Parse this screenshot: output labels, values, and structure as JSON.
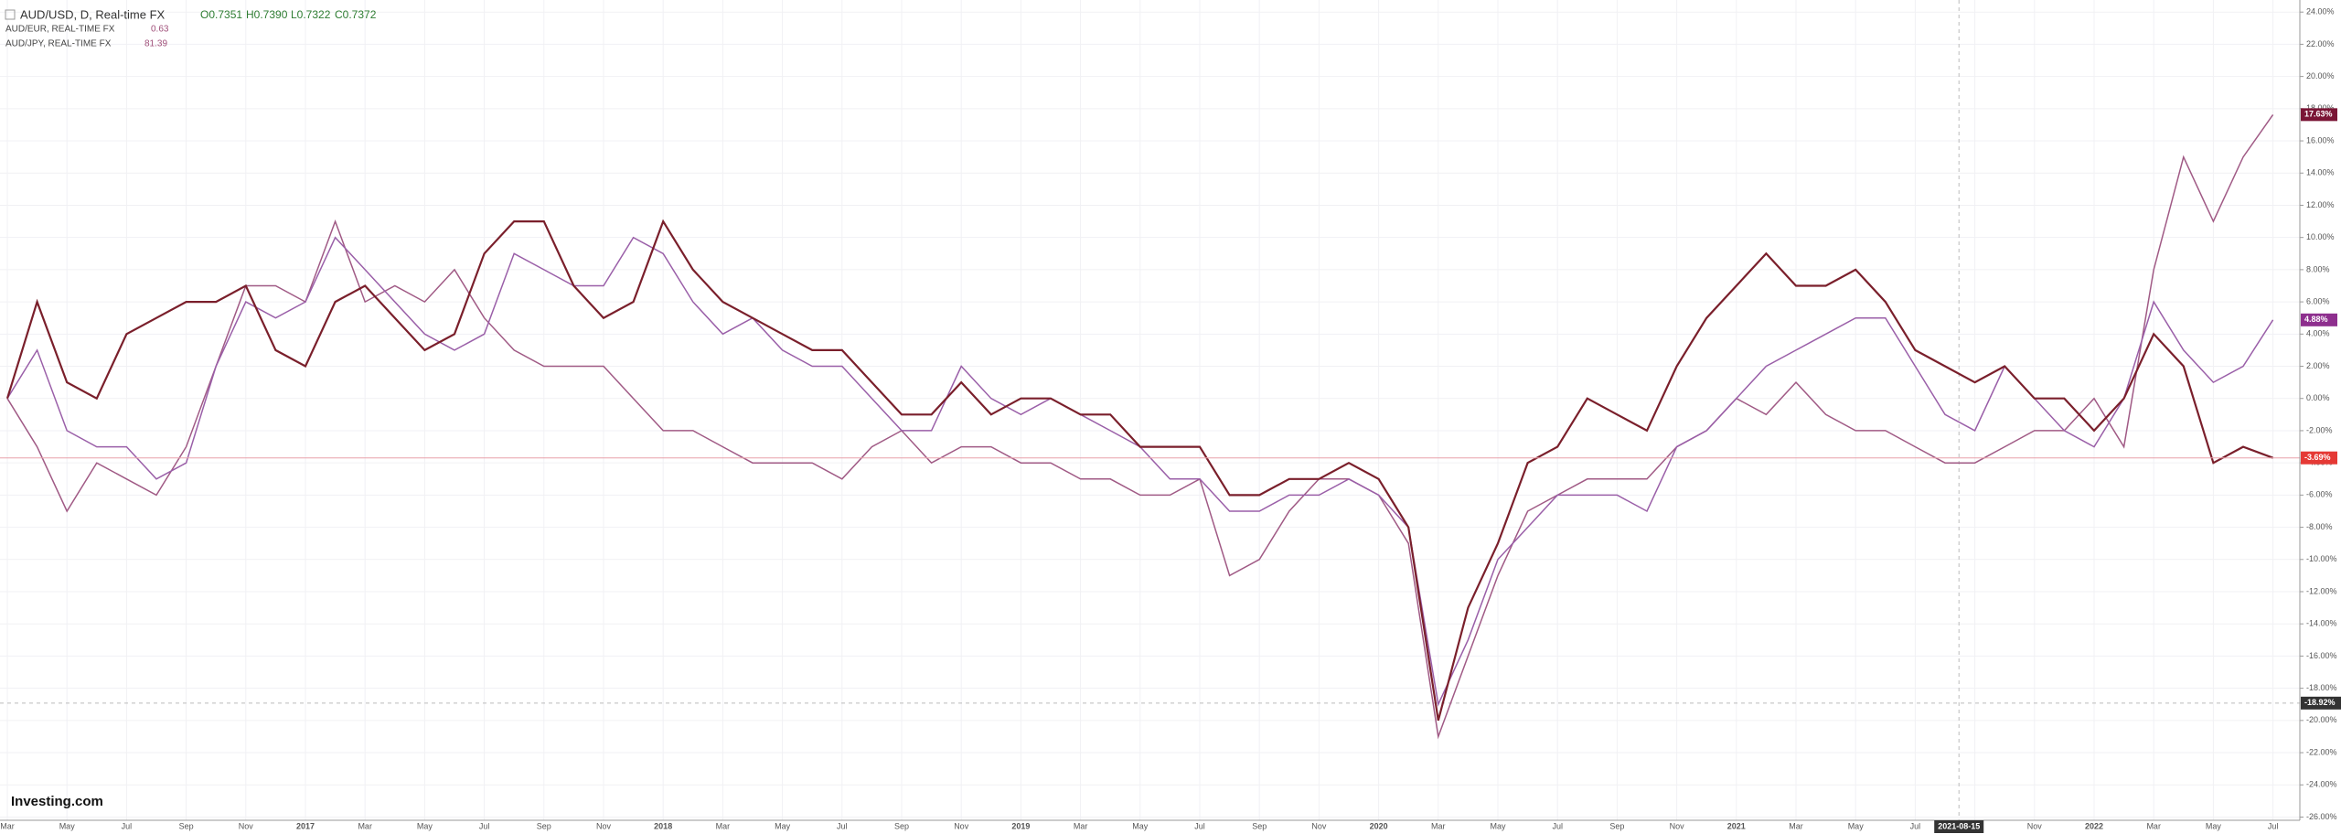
{
  "chart_data": {
    "type": "line",
    "categories": [
      "Mar",
      null,
      "May",
      null,
      "Jul",
      null,
      "Sep",
      null,
      "Nov",
      null,
      "2017",
      null,
      "Mar",
      null,
      "May",
      null,
      "Jul",
      null,
      "Sep",
      null,
      "Nov",
      null,
      "2018",
      null,
      "Mar",
      null,
      "May",
      null,
      "Jul",
      null,
      "Sep",
      null,
      "Nov",
      null,
      "2019",
      null,
      "Mar",
      null,
      "May",
      null,
      "Jul",
      null,
      "Sep",
      null,
      "Nov",
      null,
      "2020",
      null,
      "Mar",
      null,
      "May",
      null,
      "Jul",
      null,
      "Sep",
      null,
      "Nov",
      null,
      "2021",
      null,
      "Mar",
      null,
      "May",
      null,
      "Jul",
      null,
      "Sep",
      null,
      "Nov",
      null,
      "2022",
      null,
      "Mar",
      null,
      "May",
      null,
      "Jul"
    ],
    "series": [
      {
        "name": "AUD/USD, D, Real-time FX",
        "color": "#7a1f2b",
        "ohlc": [
          "O0.7351",
          "H0.7390",
          "L0.7322",
          "C0.7372"
        ],
        "last_label": "-3.69%",
        "label_color": "#e53935",
        "values": [
          0,
          6,
          1,
          0,
          4,
          5,
          6,
          6,
          7,
          3,
          2,
          6,
          7,
          5,
          3,
          4,
          9,
          11,
          11,
          7,
          5,
          6,
          11,
          8,
          6,
          5,
          4,
          3,
          3,
          1,
          -1,
          -1,
          1,
          -1,
          0,
          0,
          -1,
          -1,
          -3,
          -3,
          -3,
          -6,
          -6,
          -5,
          -5,
          -4,
          -5,
          -8,
          -20,
          -13,
          -9,
          -4,
          -3,
          0,
          -1,
          -2,
          2,
          5,
          7,
          9,
          7,
          7,
          8,
          6,
          3,
          2,
          1,
          2,
          0,
          0,
          -2,
          0,
          4,
          2,
          -4,
          -3,
          -3.69
        ]
      },
      {
        "name": "AUD/EUR, REAL-TIME FX",
        "color": "#9a5fa8",
        "price": 0.63,
        "last_label": "4.88%",
        "label_color": "#8e2f8e",
        "values": [
          0,
          3,
          -2,
          -3,
          -3,
          -5,
          -4,
          2,
          6,
          5,
          6,
          10,
          8,
          6,
          4,
          3,
          4,
          9,
          8,
          7,
          7,
          10,
          9,
          6,
          4,
          5,
          3,
          2,
          2,
          0,
          -2,
          -2,
          2,
          0,
          -1,
          0,
          -1,
          -2,
          -3,
          -5,
          -5,
          -7,
          -7,
          -6,
          -6,
          -5,
          -6,
          -8,
          -19,
          -15,
          -10,
          -8,
          -6,
          -6,
          -6,
          -7,
          -3,
          -2,
          0,
          2,
          3,
          4,
          5,
          5,
          2,
          -1,
          -2,
          2,
          0,
          -2,
          -3,
          0,
          6,
          3,
          1,
          2,
          4.88
        ]
      },
      {
        "name": "AUD/JPY, REAL-TIME FX",
        "color": "#a05a85",
        "price": 81.39,
        "last_label": "17.63%",
        "label_color": "#7a1535",
        "values": [
          0,
          -3,
          -7,
          -4,
          -5,
          -6,
          -3,
          2,
          7,
          7,
          6,
          11,
          6,
          7,
          6,
          8,
          5,
          3,
          2,
          2,
          2,
          0,
          -2,
          -2,
          -3,
          -4,
          -4,
          -4,
          -5,
          -3,
          -2,
          -4,
          -3,
          -3,
          -4,
          -4,
          -5,
          -5,
          -6,
          -6,
          -5,
          -11,
          -10,
          -7,
          -5,
          -5,
          -6,
          -9,
          -21,
          -16,
          -11,
          -7,
          -6,
          -5,
          -5,
          -5,
          -3,
          -2,
          0,
          -1,
          1,
          -1,
          -2,
          -2,
          -3,
          -4,
          -4,
          -3,
          -2,
          -2,
          0,
          -3,
          8,
          15,
          11,
          15,
          17.63
        ]
      }
    ],
    "ylim": [
      -26.2,
      24.75
    ],
    "yticks": [
      {
        "value": 24,
        "label": "24.00%"
      },
      {
        "value": 22,
        "label": "22.00%"
      },
      {
        "value": 20,
        "label": "20.00%"
      },
      {
        "value": 18,
        "label": "18.00%"
      },
      {
        "value": 16,
        "label": "16.00%"
      },
      {
        "value": 14,
        "label": "14.00%"
      },
      {
        "value": 12,
        "label": "12.00%"
      },
      {
        "value": 10,
        "label": "10.00%"
      },
      {
        "value": 8,
        "label": "8.00%"
      },
      {
        "value": 6,
        "label": "6.00%"
      },
      {
        "value": 4,
        "label": "4.00%"
      },
      {
        "value": 2,
        "label": "2.00%"
      },
      {
        "value": 0,
        "label": "0.00%"
      },
      {
        "value": -2,
        "label": "-2.00%"
      },
      {
        "value": -4,
        "label": "-4.00%"
      },
      {
        "value": -6,
        "label": "-6.00%"
      },
      {
        "value": -8,
        "label": "-8.00%"
      },
      {
        "value": -10,
        "label": "-10.00%"
      },
      {
        "value": -12,
        "label": "-12.00%"
      },
      {
        "value": -14,
        "label": "-14.00%"
      },
      {
        "value": -16,
        "label": "-16.00%"
      },
      {
        "value": -18,
        "label": "-18.00%"
      },
      {
        "value": -20,
        "label": "-20.00%"
      },
      {
        "value": -22,
        "label": "-22.00%"
      },
      {
        "value": -24,
        "label": "-24.00%"
      },
      {
        "value": -26,
        "label": "-26.00%"
      }
    ],
    "grid": true,
    "crosshair": {
      "x_label": "2021-08-15",
      "y": -18.92,
      "y_label": "-18.92%"
    },
    "logo": "Investing.com"
  }
}
